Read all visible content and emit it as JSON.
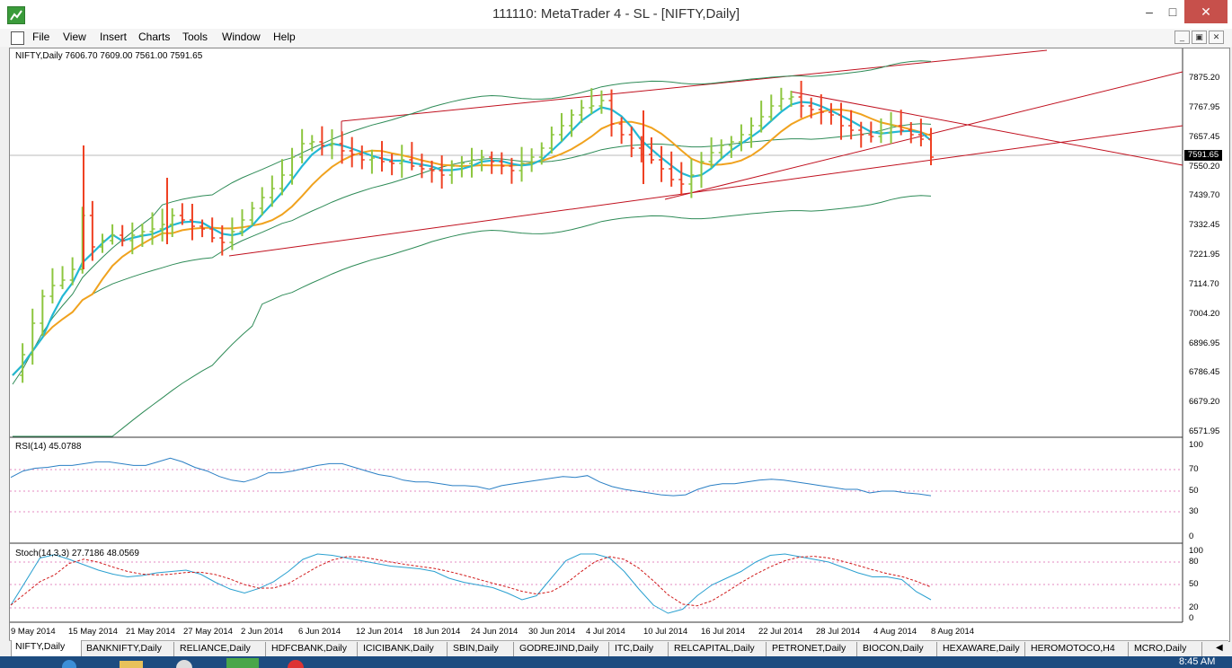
{
  "window": {
    "title": "111110: MetaTrader 4 - SL - [NIFTY,Daily]",
    "minimize_glyph": "‒",
    "maximize_glyph": "□",
    "close_glyph": "✕"
  },
  "menu": {
    "items": [
      "File",
      "View",
      "Insert",
      "Charts",
      "Tools",
      "Window",
      "Help"
    ],
    "mdi_buttons": [
      "_",
      "▣",
      "✕"
    ]
  },
  "chart": {
    "ohlc_label": "NIFTY,Daily  7606.70 7609.00 7561.00 7591.65",
    "rsi_label": "RSI(14) 45.0788",
    "stoch_label": "Stoch(14,3,3) 27.7186 48.0569",
    "current_price": "7591.65",
    "price_ticks": [
      "7875.20",
      "7767.95",
      "7657.45",
      "7550.20",
      "7439.70",
      "7332.45",
      "7221.95",
      "7114.70",
      "7004.20",
      "6896.95",
      "6786.45",
      "6679.20",
      "6571.95"
    ],
    "rsi_ticks": [
      "100",
      "70",
      "50",
      "30",
      "0"
    ],
    "stoch_ticks": [
      "100",
      "80",
      "50",
      "20",
      "0"
    ],
    "date_ticks": [
      "9 May 2014",
      "15 May 2014",
      "21 May 2014",
      "27 May 2014",
      "2 Jun 2014",
      "6 Jun 2014",
      "12 Jun 2014",
      "18 Jun 2014",
      "24 Jun 2014",
      "30 Jun 2014",
      "4 Jul 2014",
      "10 Jul 2014",
      "16 Jul 2014",
      "22 Jul 2014",
      "28 Jul 2014",
      "4 Aug 2014",
      "8 Aug 2014"
    ],
    "colors": {
      "bull": "#8dc63f",
      "bear": "#ef4123",
      "ma_fast": "#22b8d4",
      "ma_slow": "#f0a21e",
      "bands": "#2e8b57",
      "trendline": "#c0101e",
      "rsi": "#2a7fc4",
      "stoch_main": "#2aa0d0",
      "stoch_signal": "#d11a1a",
      "level_line": "#c71585"
    }
  },
  "chart_data": {
    "type": "candlestick",
    "symbol": "NIFTY",
    "timeframe": "Daily",
    "last_bar": {
      "open": 7606.7,
      "high": 7609.0,
      "low": 7561.0,
      "close": 7591.65
    },
    "y_range": [
      6571.95,
      7875.2
    ],
    "x_range": [
      "9 May 2014",
      "8 Aug 2014"
    ],
    "indicators": [
      {
        "name": "RSI(14)",
        "last": 45.0788,
        "levels": [
          30,
          50,
          70
        ]
      },
      {
        "name": "Stoch(14,3,3)",
        "main": 27.7186,
        "signal": 48.0569,
        "levels": [
          20,
          50,
          80
        ]
      }
    ]
  },
  "tabs": [
    "NIFTY,Daily",
    "BANKNIFTY,Daily",
    "RELIANCE,Daily",
    "HDFCBANK,Daily",
    "ICICIBANK,Daily",
    "SBIN,Daily",
    "GODREJIND,Daily",
    "ITC,Daily",
    "RELCAPITAL,Daily",
    "PETRONET,Daily",
    "BIOCON,Daily",
    "HEXAWARE,Daily",
    "HEROMOTOCO,H4",
    "MCRO,Daily"
  ],
  "taskbar": {
    "clock": "8:45 AM"
  }
}
